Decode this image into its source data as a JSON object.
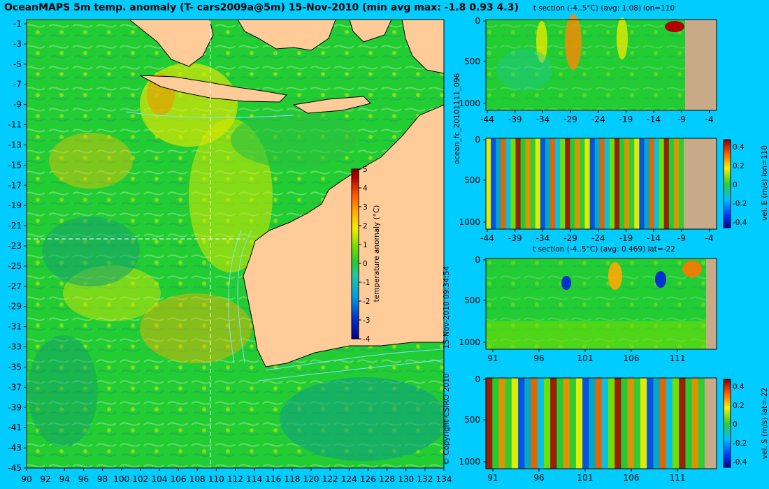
{
  "title": "OceanMAPS 5m temp. anomaly (T- cars2009a@5m) 15-Nov-2010 (min avg max: -1.8 0.93 4.3)",
  "colors": {
    "background": "#00ccff",
    "land": "#ffcc99",
    "section_land": "#c8aa88"
  },
  "map": {
    "lon_ticks": [
      "90",
      "92",
      "94",
      "96",
      "98",
      "100",
      "102",
      "104",
      "106",
      "108",
      "110",
      "112",
      "114",
      "116",
      "118",
      "120",
      "122",
      "124",
      "126",
      "128",
      "130",
      "132",
      "134"
    ],
    "lat_ticks": [
      "-1",
      "-3",
      "-5",
      "-7",
      "-9",
      "-11",
      "-13",
      "-15",
      "-17",
      "-19",
      "-21",
      "-23",
      "-25",
      "-27",
      "-29",
      "-31",
      "-33",
      "-35",
      "-37",
      "-39",
      "-41",
      "-43",
      "-45"
    ],
    "section_lon": 110,
    "section_lat": -22
  },
  "colorbar_main": {
    "label": "temperature anomaly (°C)",
    "ticks": [
      "5",
      "4",
      "3",
      "2",
      "1",
      "0",
      "-1",
      "-2",
      "-3",
      "-4"
    ]
  },
  "panels": [
    {
      "title": "t section (-4..5°C) (avg: 1.08) lon=110",
      "y_ticks": [
        "0",
        "500",
        "1000"
      ],
      "x_ticks": [
        "-44",
        "-39",
        "-34",
        "-29",
        "-24",
        "-19",
        "-14",
        "-9",
        "-4"
      ],
      "side_label": ""
    },
    {
      "title": "",
      "y_ticks": [
        "0",
        "500",
        "1000"
      ],
      "x_ticks": [
        "-44",
        "-39",
        "-34",
        "-29",
        "-24",
        "-19",
        "-14",
        "-9",
        "-4"
      ],
      "side_label": "vel. E (m/s) lon=110",
      "cb_ticks": [
        "0.4",
        "0.2",
        "0",
        "-0.2",
        "-0.4"
      ]
    },
    {
      "title": "t section (-4..5°C) (avg: 0.469) lat=-22",
      "y_ticks": [
        "0",
        "500",
        "1000"
      ],
      "x_ticks": [
        "91",
        "96",
        "101",
        "106",
        "111"
      ],
      "side_label": ""
    },
    {
      "title": "",
      "y_ticks": [
        "0",
        "500",
        "1000"
      ],
      "x_ticks": [
        "91",
        "96",
        "101",
        "106",
        "111"
      ],
      "side_label": "vel. S (m/s) lat=-22",
      "cb_ticks": [
        "0.4",
        "0.2",
        "0",
        "-0.2",
        "-0.4"
      ]
    }
  ],
  "side_text": {
    "run": "ocean_fc_20101111_096",
    "timestamp": "15-Nov-2010 09:34:54",
    "copyright": "© Copyright CSIRO 2010"
  }
}
